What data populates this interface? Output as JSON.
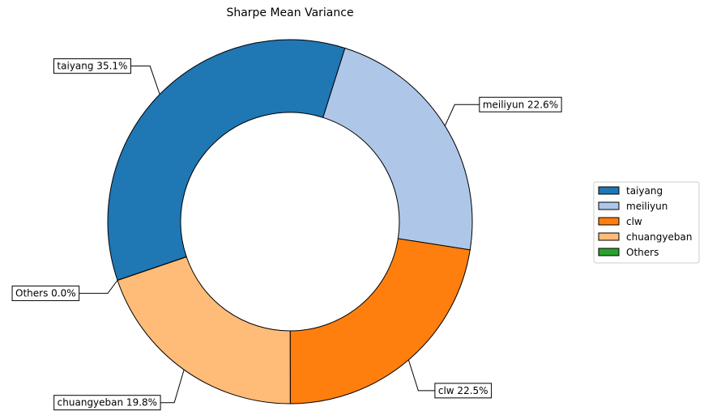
{
  "chart_data": {
    "type": "pie",
    "title": "Sharpe Mean Variance",
    "donut": true,
    "legend_position": "right",
    "slices": [
      {
        "label": "taiyang",
        "value": 35.1,
        "display": "taiyang 35.1%",
        "color": "#1f77b4"
      },
      {
        "label": "meiliyun",
        "value": 22.6,
        "display": "meiliyun 22.6%",
        "color": "#aec7e8"
      },
      {
        "label": "clw",
        "value": 22.5,
        "display": "clw 22.5%",
        "color": "#ff7f0e"
      },
      {
        "label": "chuangyeban",
        "value": 19.8,
        "display": "chuangyeban 19.8%",
        "color": "#ffbb78"
      },
      {
        "label": "Others",
        "value": 0.0,
        "display": "Others 0.0%",
        "color": "#2ca02c"
      }
    ]
  }
}
